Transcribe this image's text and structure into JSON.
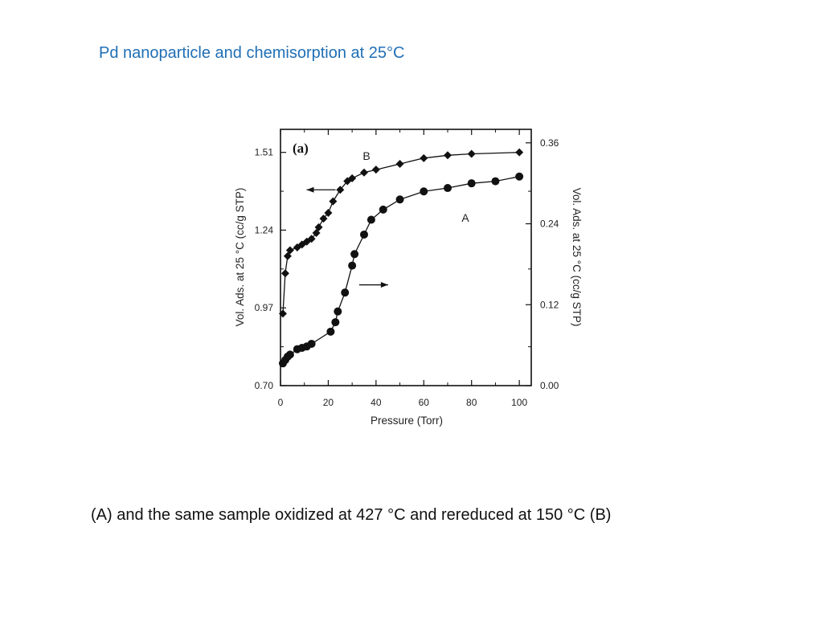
{
  "slide": {
    "title": "Pd nanoparticle and chemisorption at 25°C",
    "caption": "(A) and the same sample oxidized at 427 °C and rereduced at 150 °C (B)",
    "title_color": "#1f6fb5"
  },
  "chart_data": {
    "type": "scatter",
    "panel_label": "(a)",
    "xlabel": "Pressure (Torr)",
    "ylabel_left": "Vol. Ads. at 25 °C (cc/g STP)",
    "ylabel_right": "Vol. Ads. at 25 °C (cc/g STP)",
    "xlim": [
      0,
      105
    ],
    "xticks": [
      "0",
      "20",
      "40",
      "60",
      "80",
      "100"
    ],
    "ylim_left": [
      0.7,
      1.59
    ],
    "yticks_left": [
      "0.70",
      "0.97",
      "1.24",
      "1.51"
    ],
    "ylim_right": [
      0.0,
      0.38
    ],
    "yticks_right": [
      "0.00",
      "0.12",
      "0.24",
      "0.36"
    ],
    "series": [
      {
        "name": "B",
        "axis": "left",
        "marker": "diamond",
        "x": [
          1,
          2,
          3,
          4,
          7,
          9,
          11,
          13,
          15,
          16,
          18,
          20,
          22,
          25,
          28,
          30,
          35,
          40,
          50,
          60,
          70,
          80,
          100
        ],
        "y": [
          0.95,
          1.09,
          1.15,
          1.17,
          1.18,
          1.19,
          1.2,
          1.21,
          1.23,
          1.25,
          1.28,
          1.3,
          1.34,
          1.38,
          1.41,
          1.42,
          1.44,
          1.45,
          1.47,
          1.49,
          1.5,
          1.505,
          1.51
        ]
      },
      {
        "name": "A",
        "axis": "right",
        "marker": "circle",
        "x": [
          1,
          2,
          3,
          4,
          7,
          9,
          11,
          13,
          21,
          23,
          24,
          27,
          30,
          31,
          35,
          38,
          43,
          50,
          60,
          70,
          80,
          90,
          100
        ],
        "y": [
          0.033,
          0.038,
          0.043,
          0.046,
          0.054,
          0.056,
          0.058,
          0.062,
          0.08,
          0.094,
          0.11,
          0.138,
          0.178,
          0.195,
          0.224,
          0.246,
          0.261,
          0.276,
          0.288,
          0.293,
          0.3,
          0.303,
          0.31
        ]
      }
    ],
    "arrows": [
      {
        "points_to": "left",
        "at_x": 17,
        "at_y_left": 1.38
      },
      {
        "points_to": "right",
        "at_x": 39,
        "at_y_left": 1.05
      }
    ]
  }
}
